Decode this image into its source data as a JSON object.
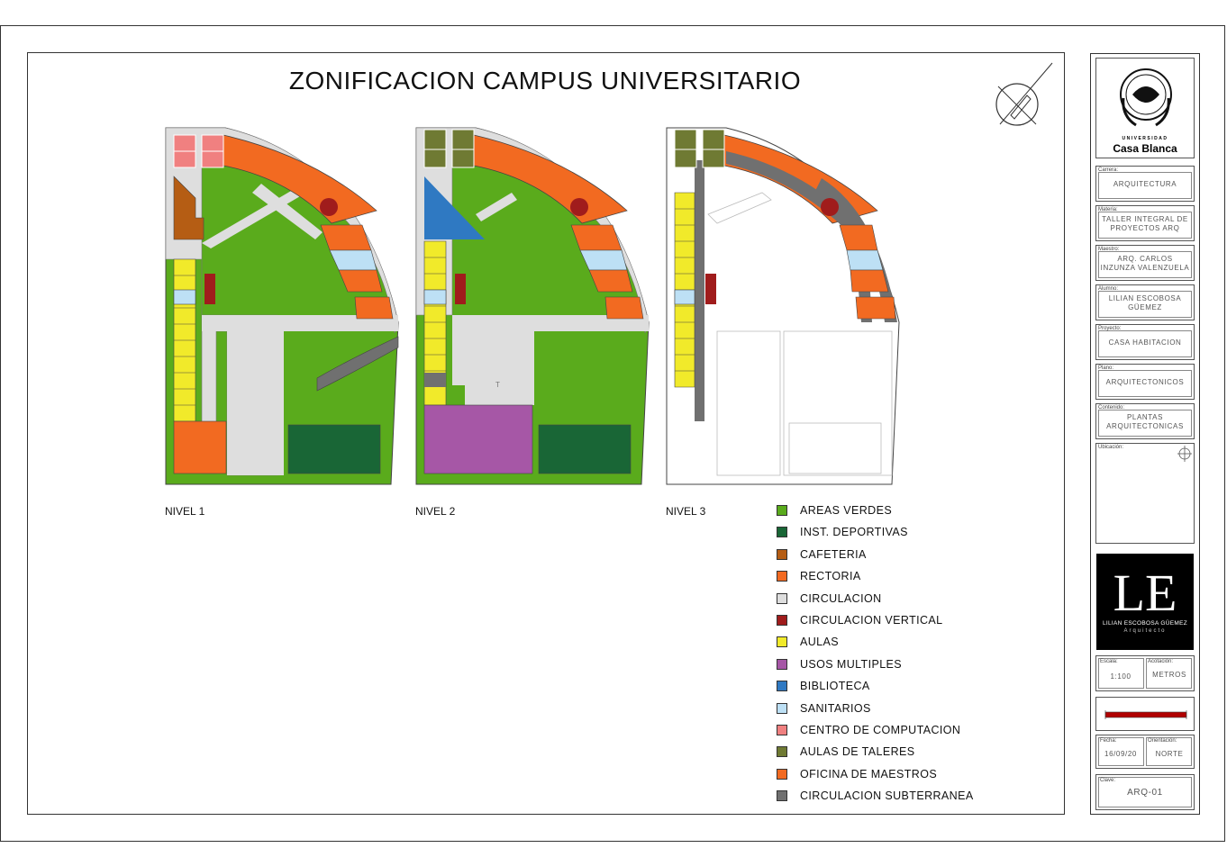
{
  "title": "ZONIFICACION CAMPUS UNIVERSITARIO",
  "levels": {
    "n1": "NIVEL 1",
    "n2": "NIVEL 2",
    "n3": "NIVEL 3"
  },
  "legend": [
    {
      "label": "AREAS VERDES",
      "color": "#5aab1c"
    },
    {
      "label": "INST. DEPORTIVAS",
      "color": "#196636"
    },
    {
      "label": "CAFETERIA",
      "color": "#b55d14"
    },
    {
      "label": "RECTORIA",
      "color": "#f26a21"
    },
    {
      "label": "CIRCULACION",
      "color": "#dedede"
    },
    {
      "label": "CIRCULACION VERTICAL",
      "color": "#a01c1c"
    },
    {
      "label": "AULAS",
      "color": "#f1ea2a"
    },
    {
      "label": "USOS MULTIPLES",
      "color": "#a657a6"
    },
    {
      "label": "BIBLIOTECA",
      "color": "#2f79c2"
    },
    {
      "label": "SANITARIOS",
      "color": "#bde0f5"
    },
    {
      "label": "CENTRO DE COMPUTACION",
      "color": "#f08080"
    },
    {
      "label": "AULAS DE TALERES",
      "color": "#6f7a33"
    },
    {
      "label": "OFICINA DE MAESTROS",
      "color": "#f26a21"
    },
    {
      "label": "CIRCULACION SUBTERRANEA",
      "color": "#707070"
    }
  ],
  "titleblock": {
    "university_line1": "UNIVERSIDAD",
    "university_line2": "Casa Blanca",
    "fields": [
      {
        "caption": "Carrera:",
        "value": "ARQUITECTURA"
      },
      {
        "caption": "Materia:",
        "value": "TALLER INTEGRAL DE PROYECTOS ARQ"
      },
      {
        "caption": "Maestro:",
        "value": "ARQ. CARLOS INZUNZA VALENZUELA"
      },
      {
        "caption": "Alumno:",
        "value": "LILIAN ESCOBOSA GÜEMEZ"
      },
      {
        "caption": "Proyecto:",
        "value": "CASA HABITACION"
      },
      {
        "caption": "Plano:",
        "value": "ARQUITECTONICOS"
      },
      {
        "caption": "Contenido:",
        "value": "PLANTAS ARQUITECTONICAS"
      }
    ],
    "ubicacion_caption": "Ubicación:",
    "architect_letters": "LE",
    "architect_name": "LILIAN ESCOBOSA GÜEMEZ",
    "architect_role": "Arquitecto",
    "escala_caption": "Escala:",
    "escala_value": "1:100",
    "acotacion_caption": "Acotación:",
    "acotacion_value": "METROS",
    "fecha_caption": "Fecha:",
    "fecha_value": "16/09/20",
    "orientacion_caption": "Orientación:",
    "orientacion_value": "NORTE",
    "clave_caption": "Clave:",
    "clave_value": "ARQ-01"
  }
}
